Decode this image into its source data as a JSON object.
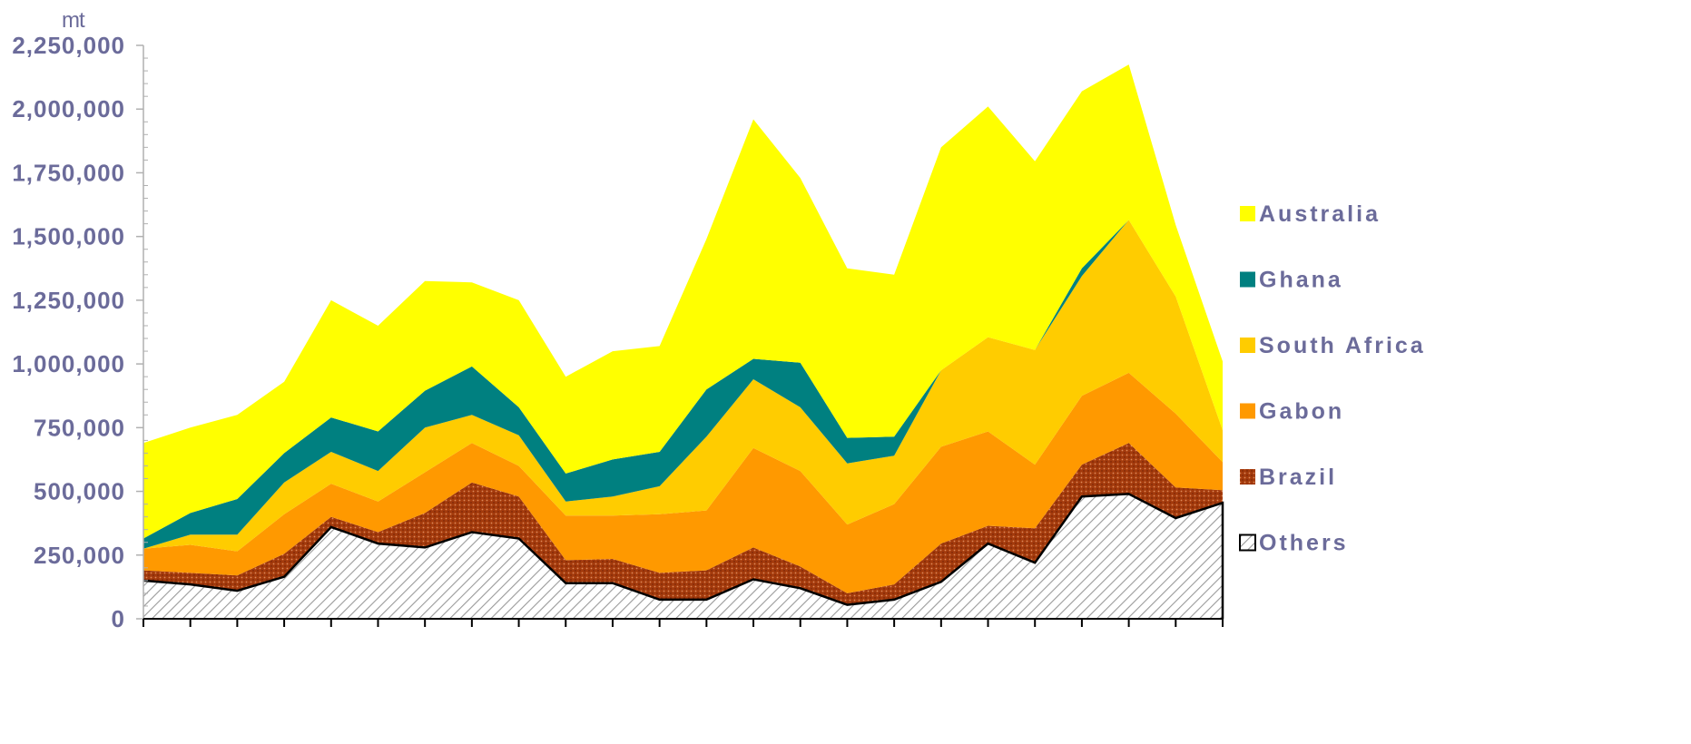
{
  "chart_data": {
    "type": "area",
    "stacked": true,
    "unit_label": "mt",
    "title": "",
    "xlabel": "",
    "ylabel": "",
    "ylim": [
      0,
      2250000
    ],
    "yticks": [
      0,
      250000,
      500000,
      750000,
      1000000,
      1250000,
      1500000,
      1750000,
      2000000,
      2250000
    ],
    "ytick_labels": [
      "0",
      "250,000",
      "500,000",
      "750,000",
      "1,000,000",
      "1,250,000",
      "1,500,000",
      "1,750,000",
      "2,000,000",
      "2,250,000"
    ],
    "x": [
      1,
      2,
      3,
      4,
      5,
      6,
      7,
      8,
      9,
      10,
      11,
      12,
      13,
      14,
      15,
      16,
      17,
      18,
      19,
      20,
      21,
      22,
      23,
      24
    ],
    "series": [
      {
        "name": "Others",
        "color": "#ffffff",
        "pattern": "diagonal-hatch",
        "values": [
          150000,
          135000,
          110000,
          165000,
          360000,
          295000,
          280000,
          340000,
          315000,
          140000,
          140000,
          75000,
          75000,
          155000,
          120000,
          55000,
          75000,
          145000,
          295000,
          220000,
          480000,
          490000,
          395000,
          455000
        ]
      },
      {
        "name": "Brazil",
        "color": "#a33a0c",
        "pattern": "dots",
        "values": [
          40000,
          45000,
          60000,
          90000,
          40000,
          45000,
          135000,
          195000,
          165000,
          90000,
          95000,
          105000,
          115000,
          125000,
          85000,
          45000,
          60000,
          150000,
          70000,
          135000,
          125000,
          200000,
          120000,
          50000
        ]
      },
      {
        "name": "Gabon",
        "color": "#ff9900",
        "pattern": "solid",
        "values": [
          85000,
          110000,
          95000,
          155000,
          130000,
          120000,
          160000,
          155000,
          120000,
          175000,
          170000,
          230000,
          235000,
          390000,
          375000,
          270000,
          315000,
          380000,
          370000,
          250000,
          270000,
          275000,
          290000,
          110000
        ]
      },
      {
        "name": "South Africa",
        "color": "#ffcc00",
        "pattern": "solid",
        "values": [
          0,
          40000,
          65000,
          125000,
          125000,
          120000,
          175000,
          110000,
          120000,
          55000,
          75000,
          110000,
          290000,
          270000,
          250000,
          240000,
          190000,
          300000,
          370000,
          450000,
          470000,
          600000,
          460000,
          125000
        ]
      },
      {
        "name": "Ghana",
        "color": "#008080",
        "pattern": "solid",
        "values": [
          40000,
          85000,
          140000,
          115000,
          135000,
          155000,
          145000,
          190000,
          110000,
          110000,
          145000,
          135000,
          185000,
          80000,
          175000,
          100000,
          75000,
          0,
          0,
          0,
          30000,
          0,
          0,
          0
        ]
      },
      {
        "name": "Australia",
        "color": "#ffff00",
        "pattern": "solid",
        "values": [
          375000,
          335000,
          330000,
          280000,
          460000,
          415000,
          430000,
          330000,
          420000,
          380000,
          425000,
          415000,
          590000,
          940000,
          725000,
          665000,
          635000,
          875000,
          905000,
          740000,
          695000,
          610000,
          280000,
          270000
        ]
      }
    ],
    "legend_order": [
      "Australia",
      "Ghana",
      "South Africa",
      "Gabon",
      "Brazil",
      "Others"
    ],
    "legend_position": "right",
    "grid": false
  }
}
